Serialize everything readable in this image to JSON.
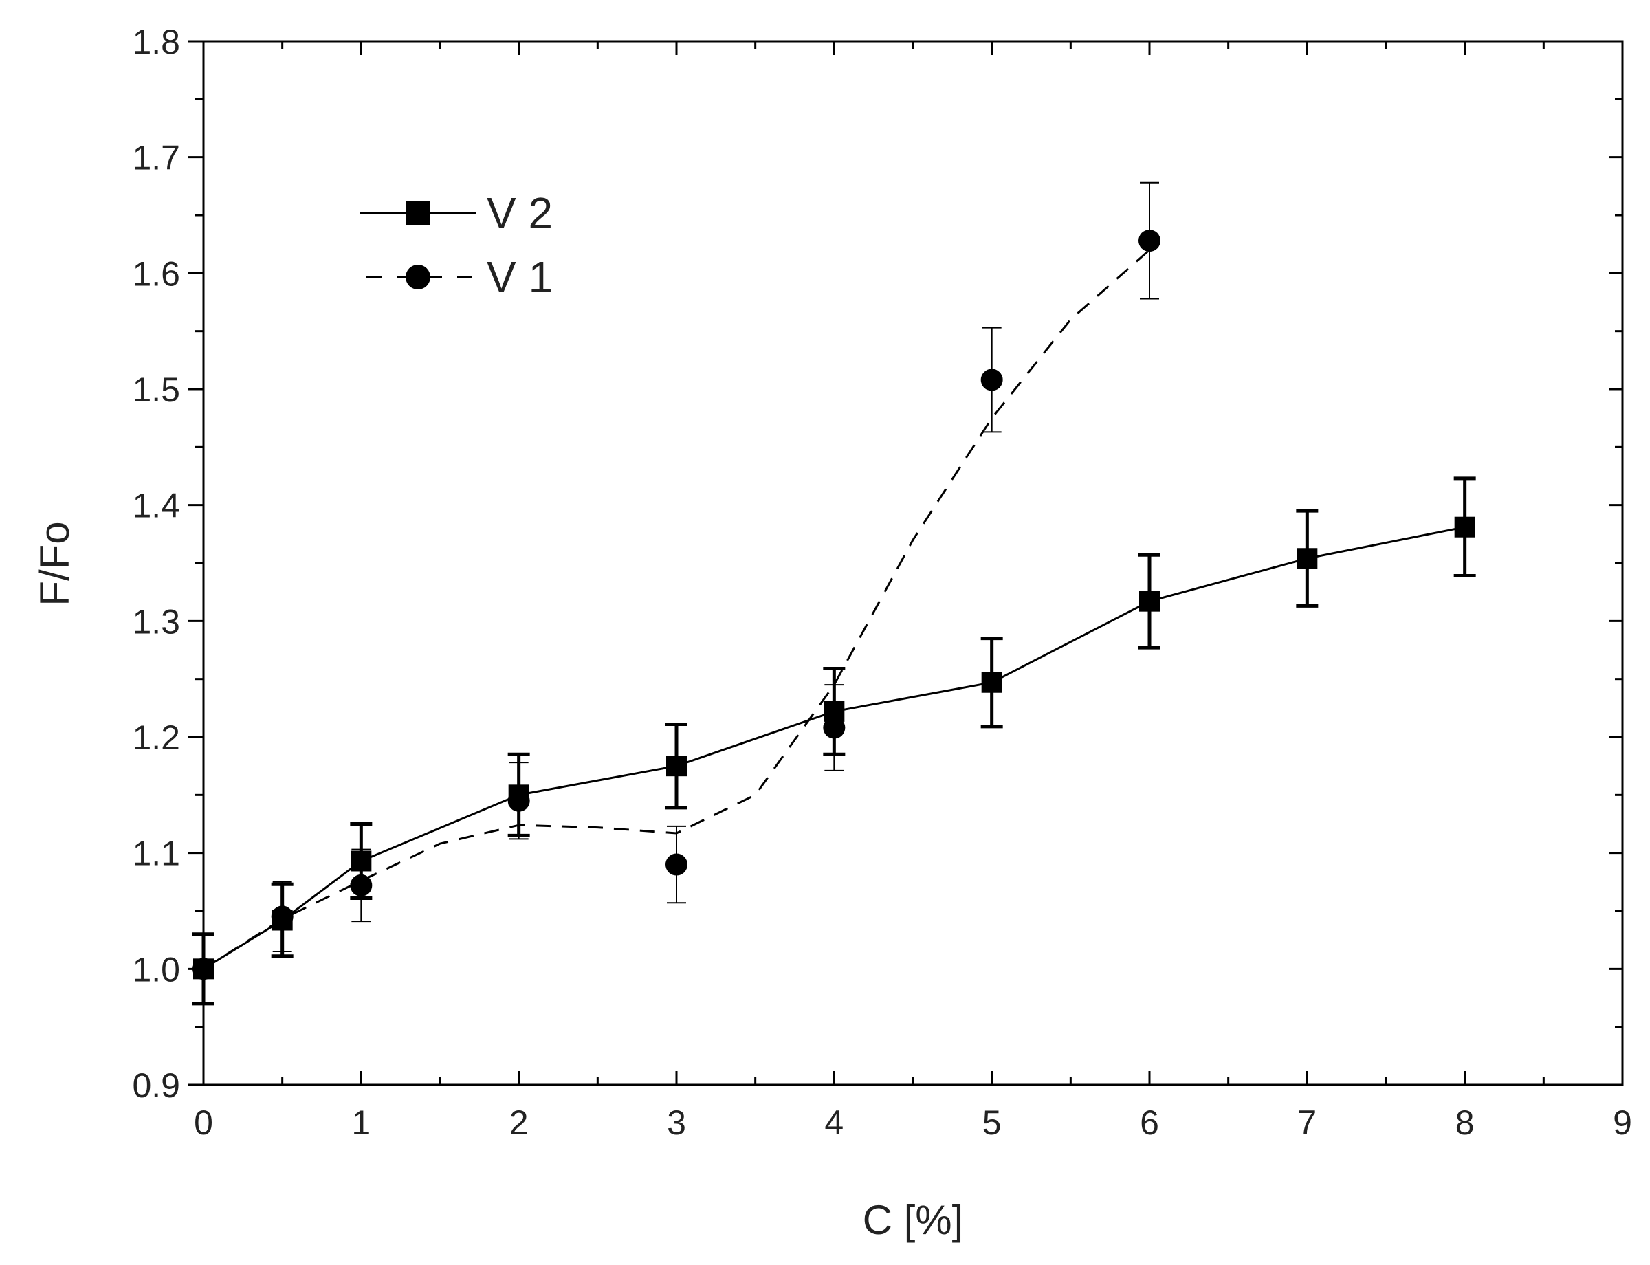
{
  "chart_data": {
    "type": "line",
    "title": "",
    "xlabel": "C [%]",
    "ylabel": "F/Fo",
    "xlim": [
      0,
      9
    ],
    "ylim": [
      0.9,
      1.8
    ],
    "xticks": [
      0,
      1,
      2,
      3,
      4,
      5,
      6,
      7,
      8,
      9
    ],
    "xtick_labels": [
      "0",
      "1",
      "2",
      "3",
      "4",
      "5",
      "6",
      "7",
      "8",
      "9"
    ],
    "yticks": [
      0.9,
      1.0,
      1.1,
      1.2,
      1.3,
      1.4,
      1.5,
      1.6,
      1.7,
      1.8
    ],
    "ytick_labels": [
      "0.9",
      "1.0",
      "1.1",
      "1.2",
      "1.3",
      "1.4",
      "1.5",
      "1.6",
      "1.7",
      "1.8"
    ],
    "grid": false,
    "legend_position": "top-left",
    "series": [
      {
        "name": "V 2",
        "marker": "square",
        "line_style": "solid",
        "x": [
          0,
          0.5,
          1,
          2,
          3,
          4,
          5,
          6,
          7,
          8
        ],
        "y": [
          1.0,
          1.042,
          1.093,
          1.15,
          1.175,
          1.222,
          1.247,
          1.317,
          1.354,
          1.381
        ],
        "err": [
          0.03,
          0.031,
          0.032,
          0.035,
          0.036,
          0.037,
          0.038,
          0.04,
          0.041,
          0.042
        ]
      },
      {
        "name": "V 1",
        "marker": "circle",
        "line_style": "dashed",
        "x": [
          0,
          0.5,
          1,
          2,
          3,
          4,
          5,
          6
        ],
        "y": [
          1.0,
          1.045,
          1.072,
          1.145,
          1.09,
          1.208,
          1.508,
          1.628
        ],
        "err": [
          0.03,
          0.03,
          0.031,
          0.033,
          0.033,
          0.037,
          0.045,
          0.05
        ],
        "fit_line": {
          "x": [
            0,
            0.5,
            1,
            1.5,
            2,
            2.5,
            3,
            3.5,
            4,
            4.5,
            5,
            5.5,
            6
          ],
          "y": [
            1.0,
            1.043,
            1.076,
            1.108,
            1.124,
            1.122,
            1.117,
            1.15,
            1.245,
            1.37,
            1.475,
            1.56,
            1.62
          ]
        }
      }
    ]
  }
}
